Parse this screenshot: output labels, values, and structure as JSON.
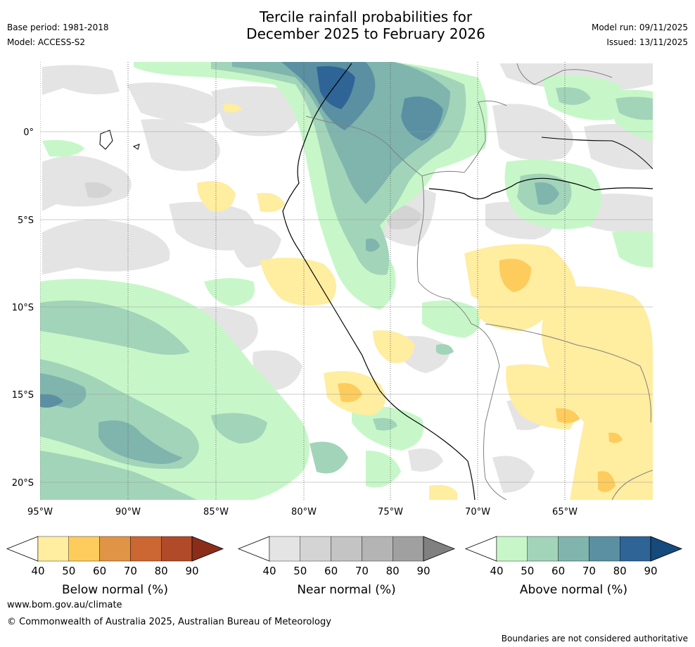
{
  "title": {
    "line1": "Tercile rainfall probabilities for",
    "line2": "December 2025 to February 2026"
  },
  "meta": {
    "base_period": "Base period: 1981-2018",
    "model": "Model: ACCESS-S2",
    "model_run": "Model run: 09/11/2025",
    "issued": "Issued: 13/11/2025"
  },
  "map": {
    "lat_labels": [
      "0°",
      "5°S",
      "10°S",
      "15°S",
      "20°S"
    ],
    "lon_labels": [
      "95°W",
      "90°W",
      "85°W",
      "80°W",
      "75°W",
      "70°W",
      "65°W"
    ],
    "land_color": "#ffffff",
    "coast_color": "#000000",
    "border_color": "#808080"
  },
  "colorbars": [
    {
      "label": "Below normal (%)",
      "ticks": [
        "40",
        "50",
        "60",
        "70",
        "80",
        "90"
      ],
      "colors": [
        "#ffffff",
        "#ffeda0",
        "#fecc5c",
        "#e09445",
        "#cc6633",
        "#b04a28",
        "#8c2d1a"
      ]
    },
    {
      "label": "Near normal (%)",
      "ticks": [
        "40",
        "50",
        "60",
        "70",
        "80",
        "90"
      ],
      "colors": [
        "#ffffff",
        "#e4e4e4",
        "#d4d4d4",
        "#c4c4c4",
        "#b4b4b4",
        "#a0a0a0",
        "#808080"
      ]
    },
    {
      "label": "Above normal (%)",
      "ticks": [
        "40",
        "50",
        "60",
        "70",
        "80",
        "90"
      ],
      "colors": [
        "#ffffff",
        "#c7f7c8",
        "#a2d4b9",
        "#7fb5ad",
        "#5a90a2",
        "#2f6497",
        "#154a7c"
      ]
    }
  ],
  "footer": {
    "url": "www.bom.gov.au/climate",
    "copyright": "© Commonwealth of Australia 2025, Australian Bureau of Meteorology",
    "disclaimer": "Boundaries are not considered authoritative"
  }
}
